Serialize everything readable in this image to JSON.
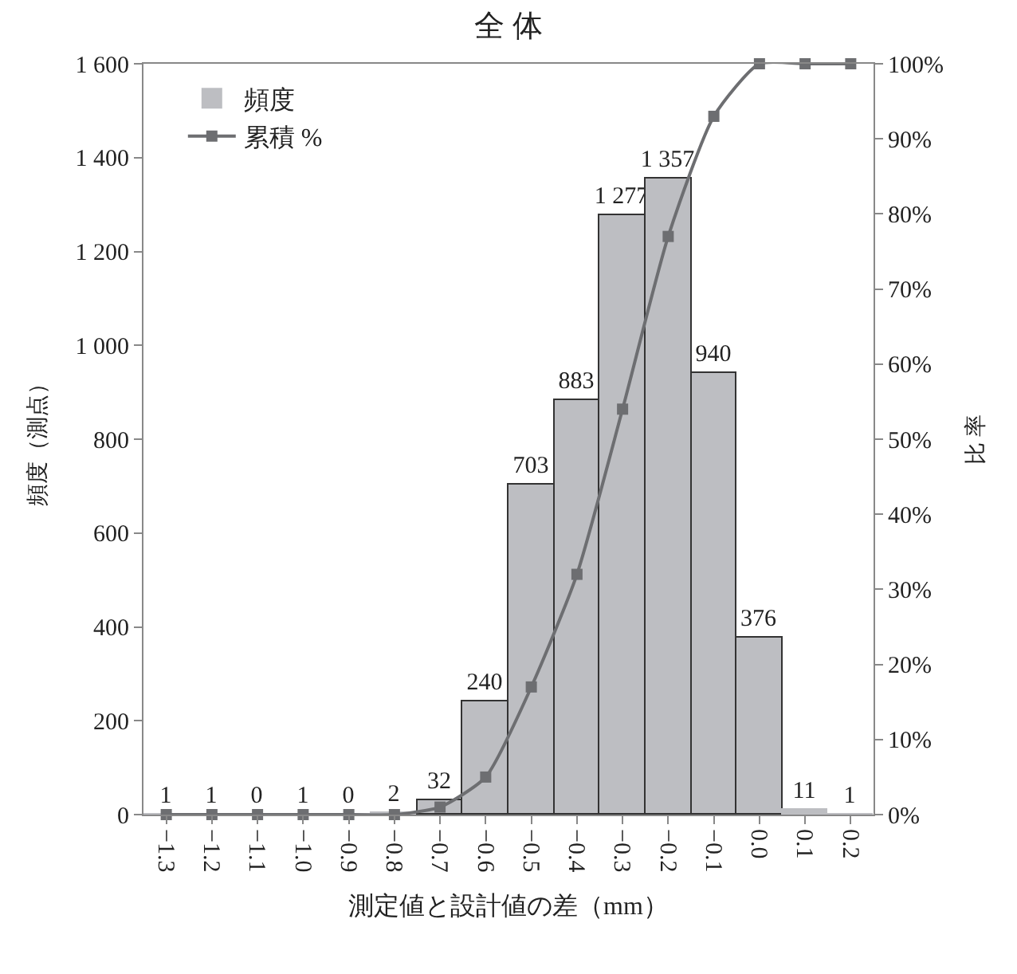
{
  "chart_data": {
    "type": "bar",
    "title": "全 体",
    "xlabel": "測定値と設計値の差（mm）",
    "ylabel": "頻度（測点）",
    "y2label": "比 率",
    "categories": [
      "−1.3",
      "−1.2",
      "−1.1",
      "−1.0",
      "−0.9",
      "−0.8",
      "−0.7",
      "−0.6",
      "−0.5",
      "−0.4",
      "−0.3",
      "−0.2",
      "−0.1",
      "0.0",
      "0.1",
      "0.2"
    ],
    "series": [
      {
        "name": "頻度",
        "color": "#bdbec2",
        "values": [
          1,
          1,
          0,
          1,
          0,
          2,
          32,
          240,
          703,
          883,
          1277,
          1357,
          940,
          376,
          11,
          1
        ],
        "value_labels": [
          "1",
          "1",
          "0",
          "1",
          "0",
          "2",
          "32",
          "240",
          "703",
          "883",
          "1 277",
          "1 357",
          "940",
          "376",
          "11",
          "1"
        ]
      },
      {
        "name": "累積 %",
        "type": "line",
        "axis": "y2",
        "color": "#6d6e71",
        "marker": "square",
        "line_style": "solid",
        "values": [
          0,
          0,
          0,
          0,
          0,
          0,
          1,
          5,
          17,
          32,
          54,
          77,
          93,
          100,
          100,
          100
        ]
      }
    ],
    "ylim": [
      0,
      1600
    ],
    "yticks": [
      0,
      200,
      400,
      600,
      800,
      {
        "value": 1000,
        "label": "1 000"
      },
      {
        "value": 1200,
        "label": "1 200"
      },
      {
        "value": 1400,
        "label": "1 400"
      },
      {
        "value": 1600,
        "label": "1 600"
      }
    ],
    "y2lim": [
      0,
      100
    ],
    "y2ticks": [
      {
        "value": 0,
        "label": "0%"
      },
      {
        "value": 10,
        "label": "10%"
      },
      {
        "value": 20,
        "label": "20%"
      },
      {
        "value": 30,
        "label": "30%"
      },
      {
        "value": 40,
        "label": "40%"
      },
      {
        "value": 50,
        "label": "50%"
      },
      {
        "value": 60,
        "label": "60%"
      },
      {
        "value": 70,
        "label": "70%"
      },
      {
        "value": 80,
        "label": "80%"
      },
      {
        "value": 90,
        "label": "90%"
      },
      {
        "value": 100,
        "label": "100%"
      }
    ],
    "legend": "top left"
  }
}
